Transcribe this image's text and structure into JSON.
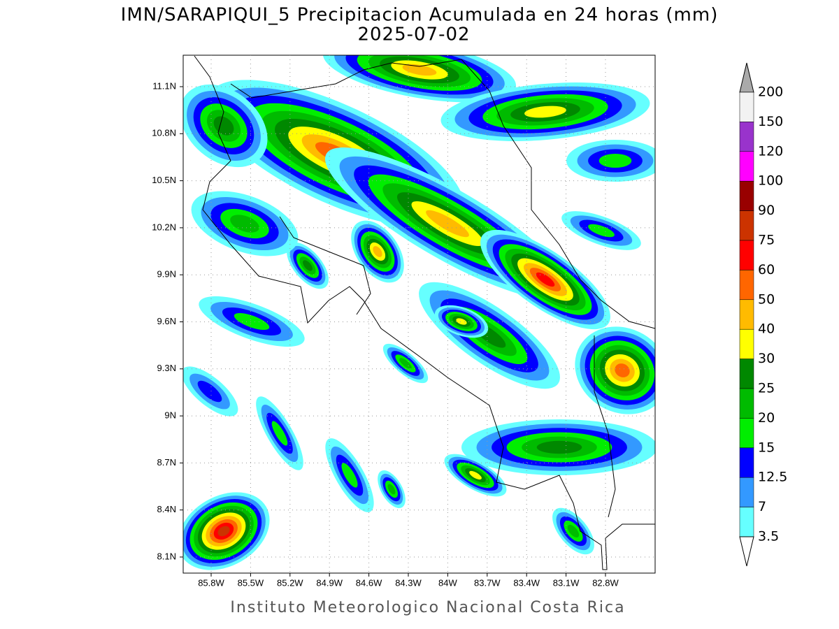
{
  "title": "IMN/SARAPIQUI_5 Precipitacion Acumulada en 24 horas (mm)",
  "subtitle": "2025-07-02",
  "footer": "Instituto Meteorologico Nacional Costa Rica",
  "map": {
    "lat_labels": [
      "11.1N",
      "10.8N",
      "10.5N",
      "10.2N",
      "9.9N",
      "9.6N",
      "9.3N",
      "9N",
      "8.7N",
      "8.4N",
      "8.1N"
    ],
    "lon_labels": [
      "85.8W",
      "85.5W",
      "85.2W",
      "84.9W",
      "84.6W",
      "84.3W",
      "84W",
      "83.7W",
      "83.4W",
      "83.1W",
      "82.8W"
    ]
  },
  "colorbar": {
    "levels": [
      "200",
      "150",
      "120",
      "100",
      "90",
      "75",
      "60",
      "50",
      "40",
      "30",
      "25",
      "20",
      "15",
      "12.5",
      "7",
      "3.5"
    ],
    "colors": [
      "#f2f2f2",
      "#9933cc",
      "#ff00ff",
      "#990000",
      "#cc3300",
      "#ff0000",
      "#ff6600",
      "#ffbb00",
      "#ffff00",
      "#008800",
      "#00bb00",
      "#00ee00",
      "#0000ff",
      "#3399ff",
      "#66ffff"
    ],
    "over_color": "#aaaaaa",
    "under_color": "#ffffff"
  }
}
